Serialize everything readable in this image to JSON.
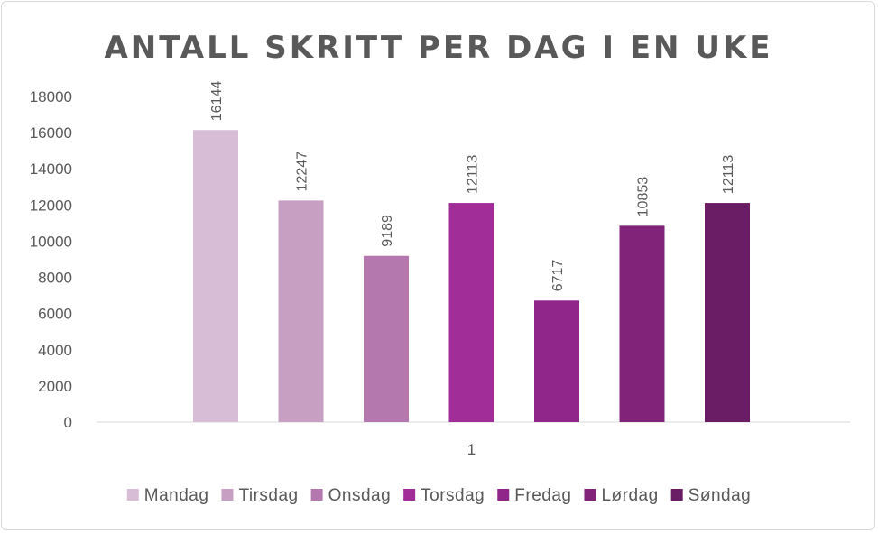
{
  "chart_data": {
    "type": "bar",
    "title": "ANTALL SKRITT PER DAG I EN UKE",
    "categories": [
      "1"
    ],
    "series": [
      {
        "name": "Mandag",
        "values": [
          16144
        ],
        "color": "#d8bdd6"
      },
      {
        "name": "Tirsdag",
        "values": [
          12247
        ],
        "color": "#c69fc3"
      },
      {
        "name": "Onsdag",
        "values": [
          9189
        ],
        "color": "#b578ae"
      },
      {
        "name": "Torsdag",
        "values": [
          12113
        ],
        "color": "#a02d98"
      },
      {
        "name": "Fredag",
        "values": [
          6717
        ],
        "color": "#91268a"
      },
      {
        "name": "Lørdag",
        "values": [
          10853
        ],
        "color": "#802379"
      },
      {
        "name": "Søndag",
        "values": [
          12113
        ],
        "color": "#6a1c64"
      }
    ],
    "yticks": [
      "0",
      "2000",
      "4000",
      "6000",
      "8000",
      "10000",
      "12000",
      "14000",
      "16000",
      "18000"
    ],
    "ylim": [
      0,
      18000
    ],
    "xlabel": "",
    "ylabel": "",
    "grid": false,
    "legend": "bottom",
    "data_labels": [
      "16144",
      "12247",
      "9189",
      "12113",
      "6717",
      "10853",
      "12113"
    ]
  }
}
